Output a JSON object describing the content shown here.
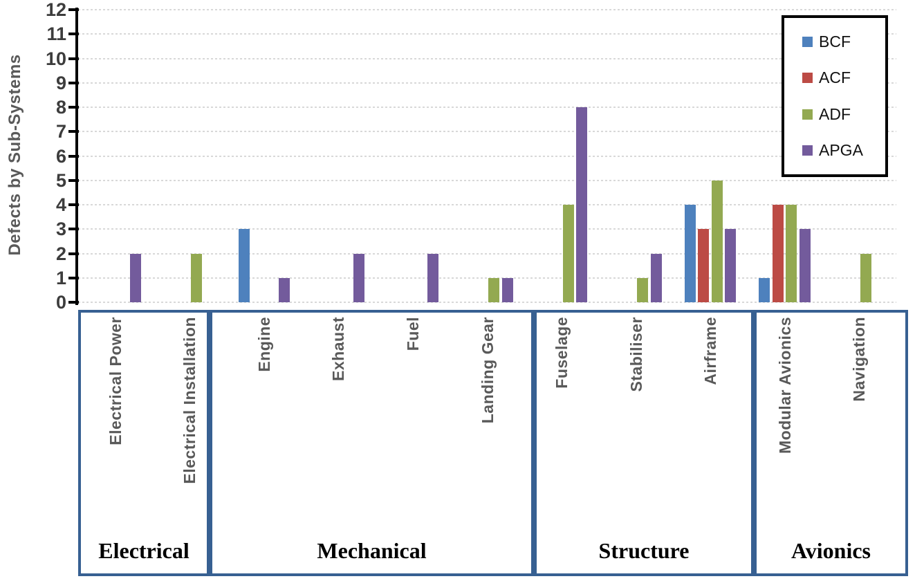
{
  "chart_data": {
    "type": "bar",
    "title": "",
    "ylabel": "Defects by Sub-Systems",
    "xlabel": "",
    "ylim": [
      0,
      12
    ],
    "ytick_step": 1,
    "yticks": [
      0,
      1,
      2,
      3,
      4,
      5,
      6,
      7,
      8,
      9,
      10,
      11,
      12
    ],
    "grid": true,
    "legend_position": "top-right",
    "categories": [
      "Electrical Power",
      "Electrical Installation",
      "Engine",
      "Exhaust",
      "Fuel",
      "Landing Gear",
      "Fuselage",
      "Stabiliser",
      "Airframe",
      "Modular Avionics",
      "Navigation"
    ],
    "groups": [
      {
        "label": "Electrical",
        "categories": [
          "Electrical Power",
          "Electrical Installation"
        ]
      },
      {
        "label": "Mechanical",
        "categories": [
          "Engine",
          "Exhaust",
          "Fuel",
          "Landing Gear"
        ]
      },
      {
        "label": "Structure",
        "categories": [
          "Fuselage",
          "Stabiliser",
          "Airframe"
        ]
      },
      {
        "label": "Avionics",
        "categories": [
          "Modular Avionics",
          "Navigation"
        ]
      }
    ],
    "series": [
      {
        "name": "BCF",
        "color": "#4E81BD",
        "values": [
          0,
          0,
          3,
          0,
          0,
          0,
          0,
          0,
          4,
          1,
          0
        ]
      },
      {
        "name": "ACF",
        "color": "#BC4B45",
        "values": [
          0,
          0,
          0,
          0,
          0,
          0,
          0,
          0,
          3,
          4,
          0
        ]
      },
      {
        "name": "ADF",
        "color": "#93A951",
        "values": [
          0,
          2,
          0,
          0,
          0,
          1,
          4,
          1,
          5,
          4,
          2
        ]
      },
      {
        "name": "APGA",
        "color": "#735B9C",
        "values": [
          2,
          0,
          1,
          2,
          2,
          1,
          8,
          2,
          3,
          3,
          0
        ]
      }
    ],
    "colors": {
      "group_box_border": "#376092",
      "gridline": "#d8d8d8",
      "axis": "#000000",
      "tick_label": "#3d3d3d",
      "category_label": "#595959",
      "group_label": "#000000",
      "legend_border": "#000000"
    }
  }
}
